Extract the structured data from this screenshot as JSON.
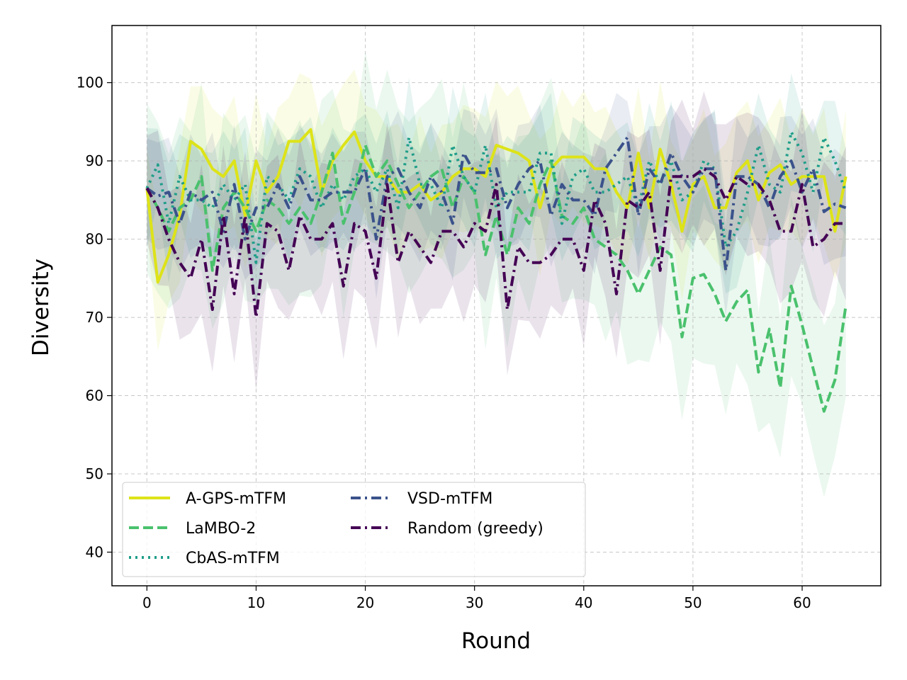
{
  "chart_data": {
    "type": "line",
    "title": "",
    "xlabel": "Round",
    "ylabel": "Diversity",
    "xlim": [
      -3.2,
      67.2
    ],
    "ylim": [
      35.7,
      107.3
    ],
    "xticks": [
      0,
      10,
      20,
      30,
      40,
      50,
      60
    ],
    "yticks": [
      40,
      50,
      60,
      70,
      80,
      90,
      100
    ],
    "grid": true,
    "legend_position": "lower-left",
    "x": [
      0,
      1,
      2,
      3,
      4,
      5,
      6,
      7,
      8,
      9,
      10,
      11,
      12,
      13,
      14,
      15,
      16,
      17,
      18,
      19,
      20,
      21,
      22,
      23,
      24,
      25,
      26,
      27,
      28,
      29,
      30,
      31,
      32,
      33,
      34,
      35,
      36,
      37,
      38,
      39,
      40,
      41,
      42,
      43,
      44,
      45,
      46,
      47,
      48,
      49,
      50,
      51,
      52,
      53,
      54,
      55,
      56,
      57,
      58,
      59,
      60,
      61,
      62,
      63,
      64
    ],
    "series": [
      {
        "name": "A-GPS-mTFM",
        "color": "#dde318",
        "dash": "solid",
        "values": [
          86.5,
          74.5,
          78,
          83,
          92.5,
          91.5,
          89,
          88,
          90,
          83,
          90,
          86,
          88,
          92.5,
          92.5,
          94,
          86,
          90,
          92,
          93.7,
          90,
          88,
          88,
          86,
          86,
          87,
          85,
          86,
          88,
          89,
          89,
          88,
          92,
          91.5,
          91,
          90,
          84,
          89,
          90.5,
          90.5,
          90.5,
          89,
          89,
          86,
          84,
          91,
          84,
          91.5,
          87,
          81,
          87,
          88,
          84,
          84,
          88.5,
          90,
          85,
          88.5,
          89.5,
          87,
          88,
          88,
          88,
          81,
          88
        ],
        "band": 8
      },
      {
        "name": "LaMBO-2",
        "color": "#4ac16d",
        "dash": "dashed",
        "values": [
          86.5,
          84,
          81,
          84,
          85,
          88,
          76,
          84,
          86,
          84,
          81,
          85,
          84,
          82,
          84,
          82,
          86,
          91,
          82,
          86,
          92,
          88,
          90,
          87,
          84,
          86,
          88,
          89,
          84,
          88,
          86,
          78,
          83,
          78,
          84,
          82,
          87,
          90,
          83,
          82,
          84,
          80,
          79,
          78,
          76,
          73,
          76,
          79,
          78,
          67.5,
          75,
          75.5,
          73,
          69.5,
          72,
          73.5,
          63,
          68.5,
          61,
          74,
          69,
          63.5,
          58,
          62,
          71.5
        ],
        "band": 11
      },
      {
        "name": "CbAS-mTFM",
        "color": "#1f9e89",
        "dash": "dotted",
        "values": [
          86.5,
          89.5,
          82,
          88,
          85,
          85,
          84,
          87,
          85,
          87,
          77,
          88,
          87,
          85,
          89,
          88,
          84,
          87,
          85,
          88,
          89,
          86,
          89,
          84,
          93,
          87,
          87,
          84,
          92,
          88,
          86,
          92,
          84,
          86,
          86,
          86,
          91,
          91,
          82,
          88,
          89,
          86,
          86,
          87,
          88,
          84,
          90,
          87,
          90,
          85,
          86,
          90,
          89,
          79,
          81,
          86,
          92,
          87,
          86,
          93.7,
          91,
          86,
          93,
          90,
          86
        ],
        "band": 7
      },
      {
        "name": "VSD-mTFM",
        "color": "#3b528b",
        "dash": "dashdot",
        "values": [
          86.5,
          85.5,
          86,
          82,
          86,
          85,
          86,
          81,
          87,
          80,
          84,
          84,
          87,
          84,
          88,
          85,
          85,
          86,
          86,
          86,
          89,
          80,
          88,
          89,
          86,
          84,
          88,
          86,
          82,
          91,
          88.5,
          88.5,
          89,
          84,
          87,
          89,
          90,
          83,
          87,
          85,
          85,
          83,
          89,
          91,
          93,
          83,
          89,
          87,
          91,
          88,
          86,
          89,
          89,
          76,
          88,
          88,
          87,
          84,
          88,
          90,
          86,
          89,
          83.5,
          84.5,
          84
        ],
        "band": 7
      },
      {
        "name": "Random (greedy)",
        "color": "#440154",
        "dash": "dashdot",
        "values": [
          86.5,
          84,
          80,
          77,
          75,
          80,
          71,
          83,
          73,
          83,
          70,
          82,
          81,
          76,
          83,
          80,
          80,
          82,
          74,
          82,
          81,
          75,
          87,
          77,
          81,
          79,
          77,
          81,
          81,
          79,
          82,
          81,
          87,
          71,
          79,
          77,
          77,
          78,
          80,
          80,
          76,
          85,
          82,
          73,
          85,
          84,
          86,
          76,
          88,
          88,
          88,
          89,
          88,
          85,
          88,
          87,
          87,
          85,
          81,
          81,
          87,
          79,
          80,
          82,
          82
        ],
        "band": 9
      }
    ]
  }
}
